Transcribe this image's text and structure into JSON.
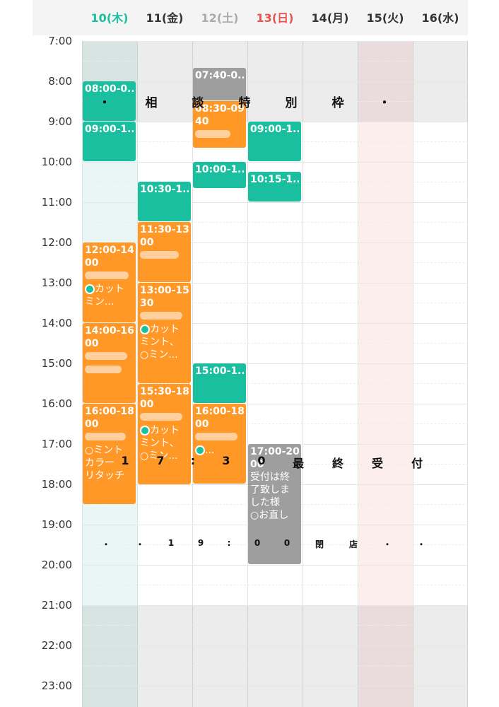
{
  "days": [
    {
      "label": "10(木)",
      "color": "#1abf9f",
      "today": true
    },
    {
      "label": "11(金)",
      "color": "#333333"
    },
    {
      "label": "12(土)",
      "color": "#aaaaaa"
    },
    {
      "label": "13(日)",
      "color": "#e8524f"
    },
    {
      "label": "14(月)",
      "color": "#333333"
    },
    {
      "label": "15(火)",
      "color": "#333333",
      "holiday": true
    },
    {
      "label": "16(水)",
      "color": "#333333"
    }
  ],
  "hours": [
    "7:00",
    "8:00",
    "9:00",
    "10:00",
    "11:00",
    "12:00",
    "13:00",
    "14:00",
    "15:00",
    "16:00",
    "17:00",
    "18:00",
    "19:00",
    "20:00",
    "21:00",
    "22:00",
    "23:00"
  ],
  "banners": {
    "consult": [
      "・",
      "相",
      "談",
      "特",
      "別",
      "枠",
      "・"
    ],
    "last_order": [
      "1",
      "7",
      ":",
      "3",
      "0",
      "最",
      "終",
      "受",
      "付"
    ],
    "closing": [
      "・",
      "・",
      "1",
      "9",
      ":",
      "0",
      "0",
      "閉",
      "店",
      "・",
      "・"
    ]
  },
  "events": {
    "d0_a": {
      "time": "08:00-0..."
    },
    "d0_b": {
      "time": "09:00-1..."
    },
    "d0_c": {
      "time": "12:00-14",
      "time2": "00",
      "line1": "カット",
      "line2": "ミン..."
    },
    "d0_d": {
      "time": "14:00-16",
      "time2": "00"
    },
    "d0_e": {
      "time": "16:00-18:",
      "time2": "00",
      "line1": "ミント",
      "line2": "カラー",
      "line3": "リタッチ"
    },
    "d1_a": {
      "time": "10:30-1..."
    },
    "d1_b": {
      "time": "11:30-13:",
      "time2": "00"
    },
    "d1_c": {
      "time": "13:00-15:",
      "time2": "30",
      "line1": "カット",
      "line2": "ミント、",
      "line3": "ミン..."
    },
    "d1_d": {
      "time": "15:30-18:",
      "time2": "00",
      "line1": "カット",
      "line2": "ミント、",
      "line3": "ミン..."
    },
    "d2_a": {
      "time": "07:40-0..."
    },
    "d2_b": {
      "time": "08:30-09:",
      "time2": "40"
    },
    "d2_c": {
      "time": "10:00-1..."
    },
    "d2_d": {
      "time": "15:00-1..."
    },
    "d2_e": {
      "time": "16:00-18:",
      "time2": "00",
      "line1": "..."
    },
    "d3_a": {
      "time": "09:00-1..."
    },
    "d3_b": {
      "time": "10:15-1..."
    },
    "d3_c": {
      "time": "17:00-20:",
      "time2": "00",
      "line1": "受付は終",
      "line2": "了致しま",
      "line3": "した様",
      "line4": "お直し"
    }
  }
}
